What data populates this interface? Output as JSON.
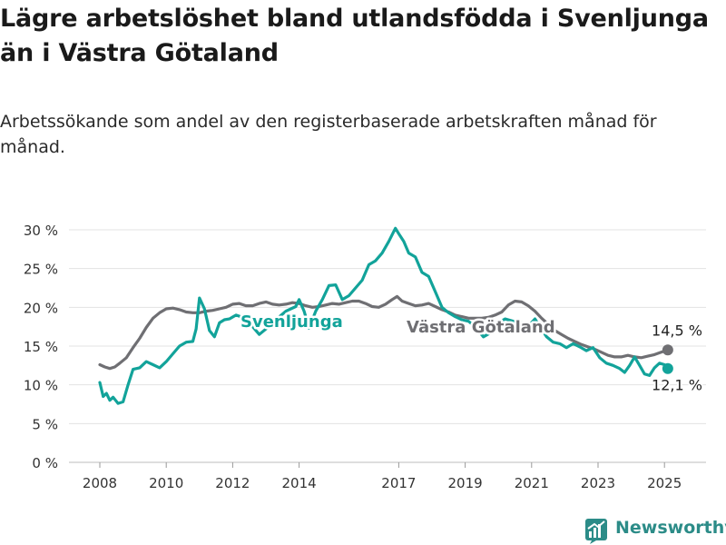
{
  "header": {
    "title": "Lägre arbetslöshet bland utlandsfödda i Svenljunga än i Västra Götaland",
    "subtitle": "Arbetssökande som andel av den registerbaserade arbetskraften månad för månad."
  },
  "brand": {
    "name": "Newsworthy",
    "color": "#2c8c88"
  },
  "chart_data": {
    "type": "line",
    "title": "",
    "xlabel": "",
    "ylabel": "",
    "ylim": [
      0,
      30
    ],
    "y_ticks": [
      0,
      5,
      10,
      15,
      20,
      25,
      30
    ],
    "y_tick_labels": [
      "0 %",
      "5 %",
      "10 %",
      "15 %",
      "20 %",
      "25 %",
      "30 %"
    ],
    "xlim": [
      2007.6,
      2026.0
    ],
    "x_ticks": [
      2008,
      2010,
      2012,
      2014,
      2017,
      2019,
      2021,
      2023,
      2025
    ],
    "x_tick_labels": [
      "2008",
      "2010",
      "2012",
      "2014",
      "2017",
      "2019",
      "2021",
      "2023",
      "2025"
    ],
    "grid": true,
    "series": [
      {
        "name": "Svenljunga",
        "color": "#12a39a",
        "end_label": "12,1 %",
        "points": [
          [
            2008.0,
            10.3
          ],
          [
            2008.1,
            8.5
          ],
          [
            2008.2,
            8.9
          ],
          [
            2008.3,
            8.0
          ],
          [
            2008.4,
            8.4
          ],
          [
            2008.55,
            7.6
          ],
          [
            2008.7,
            7.8
          ],
          [
            2008.85,
            10.0
          ],
          [
            2009.0,
            12.0
          ],
          [
            2009.2,
            12.2
          ],
          [
            2009.4,
            13.0
          ],
          [
            2009.6,
            12.6
          ],
          [
            2009.8,
            12.2
          ],
          [
            2010.0,
            13.0
          ],
          [
            2010.2,
            14.0
          ],
          [
            2010.4,
            15.0
          ],
          [
            2010.6,
            15.5
          ],
          [
            2010.8,
            15.6
          ],
          [
            2010.9,
            17.2
          ],
          [
            2011.0,
            21.2
          ],
          [
            2011.15,
            19.8
          ],
          [
            2011.3,
            17.0
          ],
          [
            2011.45,
            16.2
          ],
          [
            2011.6,
            18.0
          ],
          [
            2011.75,
            18.4
          ],
          [
            2011.9,
            18.5
          ],
          [
            2012.1,
            19.0
          ],
          [
            2012.3,
            18.7
          ],
          [
            2012.6,
            17.5
          ],
          [
            2012.8,
            16.5
          ],
          [
            2013.0,
            17.2
          ],
          [
            2013.3,
            18.4
          ],
          [
            2013.6,
            19.5
          ],
          [
            2013.9,
            20.1
          ],
          [
            2014.0,
            21.0
          ],
          [
            2014.15,
            19.5
          ],
          [
            2014.3,
            17.3
          ],
          [
            2014.5,
            19.5
          ],
          [
            2014.7,
            21.0
          ],
          [
            2014.9,
            22.8
          ],
          [
            2015.1,
            22.9
          ],
          [
            2015.3,
            21.0
          ],
          [
            2015.5,
            21.5
          ],
          [
            2015.7,
            22.5
          ],
          [
            2015.9,
            23.5
          ],
          [
            2016.1,
            25.5
          ],
          [
            2016.3,
            26.0
          ],
          [
            2016.5,
            27.0
          ],
          [
            2016.7,
            28.5
          ],
          [
            2016.9,
            30.2
          ],
          [
            2017.0,
            29.5
          ],
          [
            2017.15,
            28.5
          ],
          [
            2017.3,
            27.0
          ],
          [
            2017.5,
            26.5
          ],
          [
            2017.7,
            24.5
          ],
          [
            2017.9,
            24.0
          ],
          [
            2018.1,
            22.0
          ],
          [
            2018.3,
            20.0
          ],
          [
            2018.5,
            19.3
          ],
          [
            2018.7,
            18.8
          ],
          [
            2018.9,
            18.4
          ],
          [
            2019.1,
            18.2
          ],
          [
            2019.3,
            17.5
          ],
          [
            2019.55,
            16.2
          ],
          [
            2019.8,
            16.8
          ],
          [
            2020.0,
            18.0
          ],
          [
            2020.2,
            18.5
          ],
          [
            2020.45,
            18.2
          ],
          [
            2020.7,
            18.0
          ],
          [
            2020.95,
            17.8
          ],
          [
            2021.1,
            18.5
          ],
          [
            2021.25,
            17.5
          ],
          [
            2021.45,
            16.2
          ],
          [
            2021.65,
            15.5
          ],
          [
            2021.85,
            15.3
          ],
          [
            2022.05,
            14.8
          ],
          [
            2022.25,
            15.3
          ],
          [
            2022.45,
            14.9
          ],
          [
            2022.65,
            14.4
          ],
          [
            2022.85,
            14.8
          ],
          [
            2023.05,
            13.5
          ],
          [
            2023.25,
            12.8
          ],
          [
            2023.45,
            12.5
          ],
          [
            2023.65,
            12.1
          ],
          [
            2023.8,
            11.6
          ],
          [
            2023.95,
            12.5
          ],
          [
            2024.1,
            13.6
          ],
          [
            2024.25,
            12.5
          ],
          [
            2024.4,
            11.4
          ],
          [
            2024.55,
            11.2
          ],
          [
            2024.7,
            12.2
          ],
          [
            2024.85,
            12.8
          ],
          [
            2025.0,
            12.6
          ],
          [
            2025.1,
            12.1
          ]
        ]
      },
      {
        "name": "Västra Götaland",
        "color": "#6f6f73",
        "end_label": "14,5 %",
        "points": [
          [
            2008.0,
            12.6
          ],
          [
            2008.15,
            12.3
          ],
          [
            2008.3,
            12.1
          ],
          [
            2008.45,
            12.3
          ],
          [
            2008.6,
            12.8
          ],
          [
            2008.8,
            13.5
          ],
          [
            2009.0,
            14.8
          ],
          [
            2009.2,
            16.0
          ],
          [
            2009.4,
            17.4
          ],
          [
            2009.6,
            18.6
          ],
          [
            2009.8,
            19.3
          ],
          [
            2010.0,
            19.8
          ],
          [
            2010.2,
            19.9
          ],
          [
            2010.4,
            19.7
          ],
          [
            2010.6,
            19.4
          ],
          [
            2010.8,
            19.3
          ],
          [
            2011.0,
            19.3
          ],
          [
            2011.2,
            19.5
          ],
          [
            2011.4,
            19.6
          ],
          [
            2011.6,
            19.8
          ],
          [
            2011.8,
            20.0
          ],
          [
            2012.0,
            20.4
          ],
          [
            2012.2,
            20.5
          ],
          [
            2012.4,
            20.2
          ],
          [
            2012.6,
            20.2
          ],
          [
            2012.8,
            20.5
          ],
          [
            2013.0,
            20.7
          ],
          [
            2013.2,
            20.4
          ],
          [
            2013.4,
            20.3
          ],
          [
            2013.6,
            20.4
          ],
          [
            2013.8,
            20.6
          ],
          [
            2014.0,
            20.5
          ],
          [
            2014.2,
            20.2
          ],
          [
            2014.4,
            20.0
          ],
          [
            2014.6,
            20.1
          ],
          [
            2014.8,
            20.3
          ],
          [
            2015.0,
            20.5
          ],
          [
            2015.2,
            20.4
          ],
          [
            2015.4,
            20.6
          ],
          [
            2015.6,
            20.8
          ],
          [
            2015.8,
            20.8
          ],
          [
            2016.0,
            20.5
          ],
          [
            2016.2,
            20.1
          ],
          [
            2016.4,
            20.0
          ],
          [
            2016.6,
            20.4
          ],
          [
            2016.8,
            21.0
          ],
          [
            2016.95,
            21.4
          ],
          [
            2017.1,
            20.8
          ],
          [
            2017.3,
            20.5
          ],
          [
            2017.5,
            20.2
          ],
          [
            2017.7,
            20.3
          ],
          [
            2017.9,
            20.5
          ],
          [
            2018.1,
            20.1
          ],
          [
            2018.3,
            19.7
          ],
          [
            2018.5,
            19.4
          ],
          [
            2018.7,
            19.0
          ],
          [
            2018.9,
            18.8
          ],
          [
            2019.1,
            18.6
          ],
          [
            2019.3,
            18.6
          ],
          [
            2019.5,
            18.6
          ],
          [
            2019.7,
            18.7
          ],
          [
            2019.9,
            19.0
          ],
          [
            2020.1,
            19.4
          ],
          [
            2020.3,
            20.3
          ],
          [
            2020.5,
            20.8
          ],
          [
            2020.7,
            20.7
          ],
          [
            2020.9,
            20.2
          ],
          [
            2021.1,
            19.5
          ],
          [
            2021.3,
            18.6
          ],
          [
            2021.5,
            17.8
          ],
          [
            2021.7,
            17.0
          ],
          [
            2021.9,
            16.5
          ],
          [
            2022.1,
            16.0
          ],
          [
            2022.3,
            15.6
          ],
          [
            2022.5,
            15.2
          ],
          [
            2022.7,
            14.9
          ],
          [
            2022.9,
            14.6
          ],
          [
            2023.1,
            14.2
          ],
          [
            2023.3,
            13.8
          ],
          [
            2023.5,
            13.6
          ],
          [
            2023.7,
            13.6
          ],
          [
            2023.9,
            13.8
          ],
          [
            2024.1,
            13.6
          ],
          [
            2024.3,
            13.5
          ],
          [
            2024.5,
            13.7
          ],
          [
            2024.7,
            13.9
          ],
          [
            2024.9,
            14.2
          ],
          [
            2025.1,
            14.5
          ]
        ]
      }
    ]
  }
}
